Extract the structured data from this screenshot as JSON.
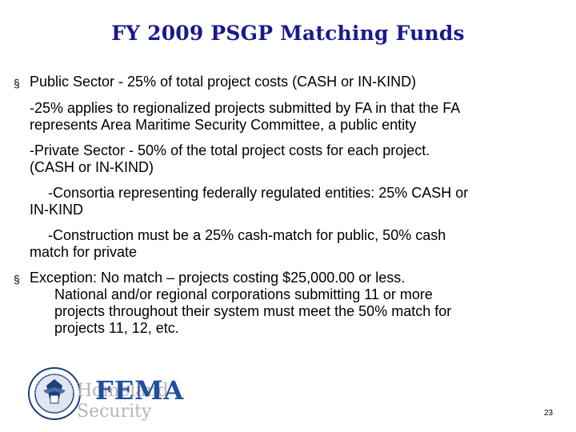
{
  "slide": {
    "title": "FY 2009 PSGP Matching Funds",
    "bullets": [
      {
        "marker": "§",
        "lines": [
          "Public Sector -  25% of total project costs (CASH or IN-KIND)",
          "-25% applies to regionalized projects submitted by FA in that the FA",
          "represents Area Maritime Security Committee, a public entity",
          "-Private Sector -  50% of the total project costs for each project.",
          "(CASH or IN-KIND)",
          "-Consortia representing federally regulated entities: 25%  CASH or",
          "IN-KIND",
          "-Construction must be a 25% cash-match for public, 50% cash",
          "match for private"
        ]
      },
      {
        "marker": "§",
        "lines": [
          "Exception:  No match – projects costing $25,000.00 or less.",
          "National and/or regional corporations submitting 11 or more",
          "projects throughout their system must meet the 50% match for",
          "projects 11, 12, etc."
        ]
      }
    ],
    "logo": {
      "homeland_top": "Homeland",
      "homeland_bottom": "Security",
      "agency": "FEMA",
      "colors": {
        "fema": "#1f4f9e",
        "homeland": "#b5b5b5",
        "seal": "#1f3f7a"
      }
    },
    "page_number": "23",
    "title_color": "#1a1a8c"
  }
}
